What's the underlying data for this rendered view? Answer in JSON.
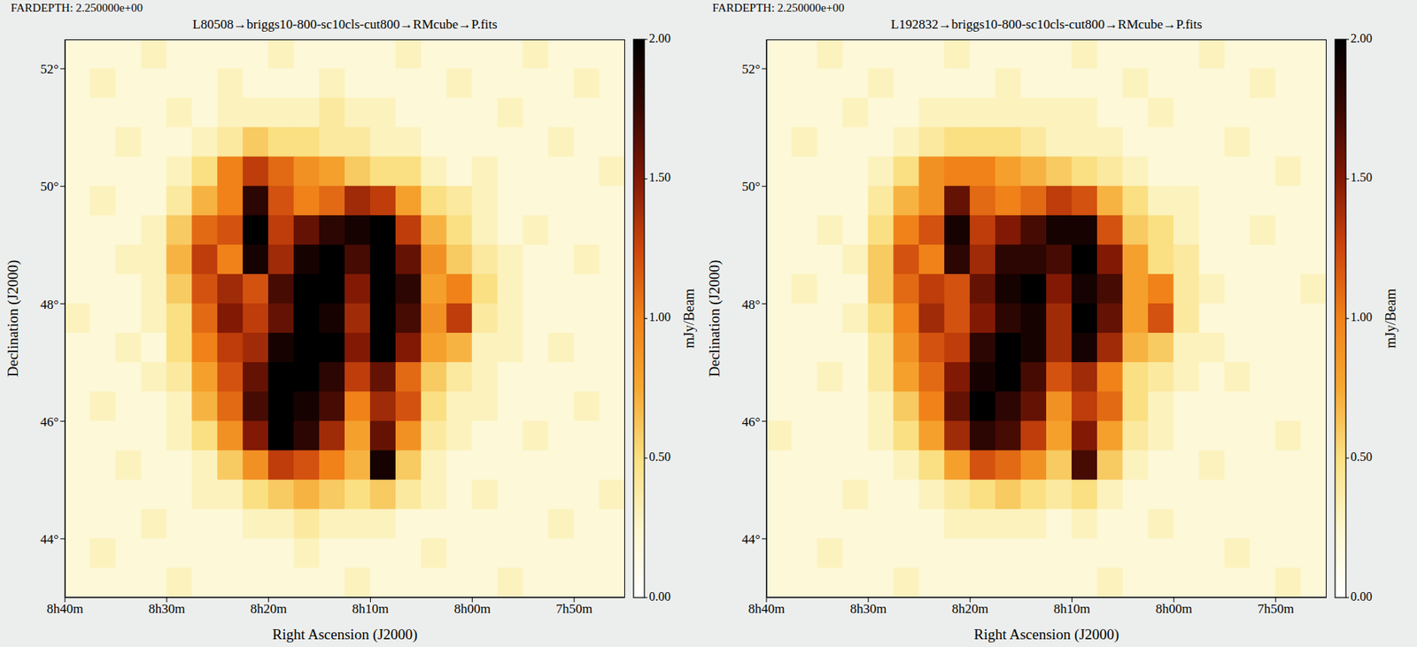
{
  "chart_data": [
    {
      "type": "heatmap",
      "subtitle": "FARDEPTH: 2.250000e+00",
      "title": "L80508→briggs10-800-sc10cls-cut800→RMcube→P.fits",
      "x_label": "Right Ascension (J2000)",
      "y_label": "Declination (J2000)",
      "xlim": [
        520,
        465
      ],
      "xticks": [
        {
          "value": 520,
          "label": "8h40m"
        },
        {
          "value": 510,
          "label": "8h30m"
        },
        {
          "value": 500,
          "label": "8h20m"
        },
        {
          "value": 490,
          "label": "8h10m"
        },
        {
          "value": 480,
          "label": "8h00m"
        },
        {
          "value": 470,
          "label": "7h50m"
        }
      ],
      "ylim": [
        43,
        52.5
      ],
      "yticks": [
        {
          "value": 44,
          "label": "44°"
        },
        {
          "value": 46,
          "label": "46°"
        },
        {
          "value": 48,
          "label": "48°"
        },
        {
          "value": 50,
          "label": "50°"
        },
        {
          "value": 52,
          "label": "52°"
        }
      ],
      "x": [
        518.75,
        516.25,
        513.75,
        511.25,
        508.75,
        506.25,
        503.75,
        501.25,
        498.75,
        496.25,
        493.75,
        491.25,
        488.75,
        486.25,
        483.75,
        481.25,
        478.75,
        476.25,
        473.75,
        471.25,
        468.75,
        466.25
      ],
      "y": [
        52.25,
        51.75,
        51.25,
        50.75,
        50.25,
        49.75,
        49.25,
        48.75,
        48.25,
        47.75,
        47.25,
        46.75,
        46.25,
        45.75,
        45.25,
        44.75,
        44.25,
        43.75,
        43.25
      ],
      "cells": [
        [
          0.2,
          0.2,
          0.2,
          0.3,
          0.2,
          0.2,
          0.2,
          0.2,
          0.3,
          0.2,
          0.2,
          0.2,
          0.2,
          0.3,
          0.2,
          0.2,
          0.2,
          0.2,
          0.3,
          0.2,
          0.2,
          0.2
        ],
        [
          0.2,
          0.3,
          0.2,
          0.2,
          0.2,
          0.2,
          0.3,
          0.2,
          0.2,
          0.2,
          0.3,
          0.2,
          0.2,
          0.2,
          0.2,
          0.3,
          0.2,
          0.2,
          0.2,
          0.2,
          0.3,
          0.2
        ],
        [
          0.2,
          0.2,
          0.2,
          0.2,
          0.3,
          0.2,
          0.3,
          0.3,
          0.3,
          0.3,
          0.4,
          0.3,
          0.3,
          0.2,
          0.2,
          0.2,
          0.2,
          0.3,
          0.2,
          0.2,
          0.2,
          0.2
        ],
        [
          0.2,
          0.2,
          0.3,
          0.2,
          0.2,
          0.3,
          0.4,
          0.6,
          0.5,
          0.5,
          0.4,
          0.4,
          0.3,
          0.3,
          0.2,
          0.2,
          0.2,
          0.2,
          0.2,
          0.3,
          0.2,
          0.2
        ],
        [
          0.2,
          0.2,
          0.2,
          0.2,
          0.3,
          0.5,
          1.0,
          1.3,
          1.1,
          0.9,
          0.8,
          0.6,
          0.5,
          0.5,
          0.3,
          0.2,
          0.3,
          0.2,
          0.2,
          0.2,
          0.2,
          0.3
        ],
        [
          0.2,
          0.3,
          0.2,
          0.2,
          0.4,
          0.7,
          1.0,
          1.8,
          1.2,
          1.0,
          1.1,
          1.4,
          1.3,
          0.8,
          0.5,
          0.4,
          0.3,
          0.2,
          0.2,
          0.2,
          0.2,
          0.2
        ],
        [
          0.2,
          0.2,
          0.2,
          0.3,
          0.6,
          1.1,
          1.2,
          2.0,
          1.3,
          1.6,
          1.8,
          1.9,
          2.0,
          1.3,
          0.7,
          0.5,
          0.3,
          0.2,
          0.3,
          0.2,
          0.2,
          0.2
        ],
        [
          0.2,
          0.2,
          0.3,
          0.3,
          0.7,
          1.3,
          1.0,
          1.9,
          1.4,
          1.9,
          2.0,
          1.7,
          2.0,
          1.6,
          0.9,
          0.6,
          0.4,
          0.3,
          0.2,
          0.2,
          0.3,
          0.2
        ],
        [
          0.2,
          0.2,
          0.2,
          0.3,
          0.6,
          1.2,
          1.4,
          1.2,
          1.7,
          2.0,
          2.0,
          1.5,
          2.0,
          1.8,
          0.8,
          1.0,
          0.5,
          0.3,
          0.2,
          0.2,
          0.2,
          0.2
        ],
        [
          0.3,
          0.2,
          0.2,
          0.3,
          0.5,
          1.1,
          1.5,
          1.3,
          1.6,
          2.0,
          1.9,
          1.4,
          2.0,
          1.7,
          0.9,
          1.3,
          0.4,
          0.3,
          0.2,
          0.2,
          0.2,
          0.2
        ],
        [
          0.2,
          0.2,
          0.3,
          0.2,
          0.5,
          1.0,
          1.3,
          1.4,
          1.9,
          2.0,
          2.0,
          1.5,
          2.0,
          1.5,
          0.8,
          0.7,
          0.3,
          0.3,
          0.2,
          0.3,
          0.2,
          0.2
        ],
        [
          0.2,
          0.2,
          0.2,
          0.3,
          0.4,
          0.8,
          1.2,
          1.6,
          2.0,
          2.0,
          1.8,
          1.3,
          1.6,
          1.1,
          0.6,
          0.4,
          0.3,
          0.2,
          0.2,
          0.2,
          0.2,
          0.2
        ],
        [
          0.2,
          0.3,
          0.2,
          0.2,
          0.3,
          0.7,
          1.1,
          1.7,
          2.0,
          1.9,
          1.7,
          1.0,
          1.4,
          1.2,
          0.5,
          0.3,
          0.3,
          0.2,
          0.2,
          0.2,
          0.3,
          0.2
        ],
        [
          0.2,
          0.2,
          0.2,
          0.2,
          0.3,
          0.5,
          0.9,
          1.5,
          2.0,
          1.8,
          1.4,
          0.8,
          1.6,
          0.9,
          0.4,
          0.3,
          0.2,
          0.2,
          0.3,
          0.2,
          0.2,
          0.2
        ],
        [
          0.2,
          0.2,
          0.3,
          0.2,
          0.2,
          0.3,
          0.6,
          0.9,
          1.3,
          1.2,
          1.0,
          0.7,
          1.9,
          0.6,
          0.3,
          0.2,
          0.2,
          0.2,
          0.2,
          0.2,
          0.2,
          0.2
        ],
        [
          0.2,
          0.2,
          0.2,
          0.2,
          0.2,
          0.3,
          0.3,
          0.5,
          0.6,
          0.7,
          0.6,
          0.5,
          0.6,
          0.4,
          0.3,
          0.2,
          0.3,
          0.2,
          0.2,
          0.2,
          0.2,
          0.3
        ],
        [
          0.2,
          0.2,
          0.2,
          0.3,
          0.2,
          0.2,
          0.2,
          0.3,
          0.3,
          0.4,
          0.3,
          0.3,
          0.3,
          0.2,
          0.2,
          0.2,
          0.2,
          0.2,
          0.2,
          0.3,
          0.2,
          0.2
        ],
        [
          0.2,
          0.3,
          0.2,
          0.2,
          0.2,
          0.2,
          0.2,
          0.2,
          0.2,
          0.3,
          0.2,
          0.2,
          0.2,
          0.2,
          0.3,
          0.2,
          0.2,
          0.2,
          0.2,
          0.2,
          0.2,
          0.2
        ],
        [
          0.2,
          0.2,
          0.2,
          0.2,
          0.3,
          0.2,
          0.2,
          0.2,
          0.2,
          0.2,
          0.2,
          0.3,
          0.2,
          0.2,
          0.2,
          0.2,
          0.2,
          0.3,
          0.2,
          0.2,
          0.2,
          0.2
        ]
      ],
      "colorbar": {
        "range": [
          0,
          2
        ],
        "ticks": [
          {
            "value": 0,
            "label": "0.00"
          },
          {
            "value": 0.5,
            "label": "0.50"
          },
          {
            "value": 1,
            "label": "1.00"
          },
          {
            "value": 1.5,
            "label": "1.50"
          },
          {
            "value": 2,
            "label": "2.00"
          }
        ],
        "label": "mJy/Beam"
      }
    },
    {
      "type": "heatmap",
      "subtitle": "FARDEPTH: 2.250000e+00",
      "title": "L192832→briggs10-800-sc10cls-cut800→RMcube→P.fits",
      "x_label": "Right Ascension (J2000)",
      "y_label": "Declination (J2000)",
      "xlim": [
        520,
        465
      ],
      "xticks": [
        {
          "value": 520,
          "label": "8h40m"
        },
        {
          "value": 510,
          "label": "8h30m"
        },
        {
          "value": 500,
          "label": "8h20m"
        },
        {
          "value": 490,
          "label": "8h10m"
        },
        {
          "value": 480,
          "label": "8h00m"
        },
        {
          "value": 470,
          "label": "7h50m"
        }
      ],
      "ylim": [
        43,
        52.5
      ],
      "yticks": [
        {
          "value": 44,
          "label": "44°"
        },
        {
          "value": 46,
          "label": "46°"
        },
        {
          "value": 48,
          "label": "48°"
        },
        {
          "value": 50,
          "label": "50°"
        },
        {
          "value": 52,
          "label": "52°"
        }
      ],
      "x": [
        518.75,
        516.25,
        513.75,
        511.25,
        508.75,
        506.25,
        503.75,
        501.25,
        498.75,
        496.25,
        493.75,
        491.25,
        488.75,
        486.25,
        483.75,
        481.25,
        478.75,
        476.25,
        473.75,
        471.25,
        468.75,
        466.25
      ],
      "y": [
        52.25,
        51.75,
        51.25,
        50.75,
        50.25,
        49.75,
        49.25,
        48.75,
        48.25,
        47.75,
        47.25,
        46.75,
        46.25,
        45.75,
        45.25,
        44.75,
        44.25,
        43.75,
        43.25
      ],
      "cells": [
        [
          0.2,
          0.2,
          0.3,
          0.2,
          0.2,
          0.2,
          0.2,
          0.3,
          0.2,
          0.2,
          0.2,
          0.2,
          0.3,
          0.2,
          0.2,
          0.2,
          0.2,
          0.3,
          0.2,
          0.2,
          0.2,
          0.2
        ],
        [
          0.2,
          0.2,
          0.2,
          0.2,
          0.3,
          0.2,
          0.2,
          0.2,
          0.2,
          0.3,
          0.2,
          0.2,
          0.2,
          0.2,
          0.3,
          0.2,
          0.2,
          0.2,
          0.2,
          0.3,
          0.2,
          0.2
        ],
        [
          0.2,
          0.2,
          0.2,
          0.3,
          0.2,
          0.2,
          0.3,
          0.3,
          0.3,
          0.3,
          0.3,
          0.3,
          0.3,
          0.2,
          0.2,
          0.3,
          0.2,
          0.2,
          0.2,
          0.2,
          0.2,
          0.2
        ],
        [
          0.2,
          0.3,
          0.2,
          0.2,
          0.2,
          0.3,
          0.4,
          0.5,
          0.5,
          0.5,
          0.4,
          0.3,
          0.3,
          0.3,
          0.2,
          0.2,
          0.2,
          0.2,
          0.3,
          0.2,
          0.2,
          0.2
        ],
        [
          0.2,
          0.2,
          0.2,
          0.2,
          0.3,
          0.5,
          0.9,
          1.0,
          1.0,
          0.8,
          0.7,
          0.6,
          0.5,
          0.4,
          0.3,
          0.2,
          0.2,
          0.2,
          0.2,
          0.2,
          0.3,
          0.2
        ],
        [
          0.2,
          0.2,
          0.2,
          0.2,
          0.4,
          0.7,
          0.9,
          1.6,
          1.1,
          1.0,
          1.1,
          1.3,
          1.2,
          0.7,
          0.5,
          0.3,
          0.3,
          0.2,
          0.2,
          0.2,
          0.2,
          0.2
        ],
        [
          0.2,
          0.2,
          0.3,
          0.2,
          0.5,
          1.0,
          1.2,
          1.9,
          1.3,
          1.5,
          1.7,
          1.9,
          1.9,
          1.2,
          0.6,
          0.5,
          0.3,
          0.2,
          0.2,
          0.3,
          0.2,
          0.2
        ],
        [
          0.2,
          0.2,
          0.2,
          0.3,
          0.6,
          1.2,
          1.0,
          1.8,
          1.4,
          1.8,
          1.8,
          1.7,
          2.0,
          1.5,
          0.8,
          0.5,
          0.4,
          0.2,
          0.2,
          0.2,
          0.2,
          0.2
        ],
        [
          0.2,
          0.3,
          0.2,
          0.2,
          0.6,
          1.1,
          1.3,
          1.2,
          1.6,
          1.9,
          2.0,
          1.5,
          1.9,
          1.7,
          0.8,
          1.0,
          0.4,
          0.3,
          0.2,
          0.2,
          0.2,
          0.3
        ],
        [
          0.2,
          0.2,
          0.2,
          0.3,
          0.5,
          1.0,
          1.4,
          1.2,
          1.5,
          1.8,
          1.9,
          1.4,
          2.0,
          1.6,
          0.8,
          1.2,
          0.4,
          0.2,
          0.2,
          0.2,
          0.2,
          0.2
        ],
        [
          0.2,
          0.2,
          0.2,
          0.2,
          0.4,
          0.9,
          1.2,
          1.3,
          1.8,
          2.0,
          1.9,
          1.4,
          1.9,
          1.4,
          0.7,
          0.6,
          0.3,
          0.3,
          0.2,
          0.2,
          0.2,
          0.2
        ],
        [
          0.2,
          0.2,
          0.3,
          0.2,
          0.4,
          0.8,
          1.1,
          1.5,
          1.9,
          2.0,
          1.7,
          1.2,
          1.4,
          1.0,
          0.5,
          0.4,
          0.3,
          0.2,
          0.3,
          0.2,
          0.2,
          0.2
        ],
        [
          0.2,
          0.2,
          0.2,
          0.2,
          0.3,
          0.6,
          1.0,
          1.6,
          2.0,
          1.8,
          1.6,
          0.9,
          1.3,
          1.1,
          0.5,
          0.3,
          0.2,
          0.2,
          0.2,
          0.2,
          0.2,
          0.2
        ],
        [
          0.3,
          0.2,
          0.2,
          0.2,
          0.3,
          0.5,
          0.8,
          1.4,
          1.8,
          1.7,
          1.3,
          0.8,
          1.5,
          0.8,
          0.4,
          0.3,
          0.2,
          0.2,
          0.2,
          0.2,
          0.3,
          0.2
        ],
        [
          0.2,
          0.2,
          0.2,
          0.2,
          0.2,
          0.3,
          0.5,
          0.8,
          1.2,
          1.1,
          0.9,
          0.6,
          1.7,
          0.6,
          0.3,
          0.2,
          0.2,
          0.3,
          0.2,
          0.2,
          0.2,
          0.2
        ],
        [
          0.2,
          0.2,
          0.2,
          0.3,
          0.2,
          0.2,
          0.3,
          0.4,
          0.5,
          0.6,
          0.5,
          0.4,
          0.5,
          0.3,
          0.2,
          0.2,
          0.2,
          0.2,
          0.2,
          0.2,
          0.2,
          0.2
        ],
        [
          0.2,
          0.2,
          0.2,
          0.2,
          0.2,
          0.2,
          0.2,
          0.3,
          0.3,
          0.3,
          0.3,
          0.2,
          0.3,
          0.2,
          0.2,
          0.3,
          0.2,
          0.2,
          0.2,
          0.2,
          0.2,
          0.2
        ],
        [
          0.2,
          0.2,
          0.3,
          0.2,
          0.2,
          0.2,
          0.2,
          0.2,
          0.2,
          0.2,
          0.2,
          0.2,
          0.2,
          0.2,
          0.2,
          0.2,
          0.2,
          0.2,
          0.3,
          0.2,
          0.2,
          0.2
        ],
        [
          0.2,
          0.2,
          0.2,
          0.2,
          0.2,
          0.3,
          0.2,
          0.2,
          0.2,
          0.2,
          0.2,
          0.2,
          0.2,
          0.3,
          0.2,
          0.2,
          0.2,
          0.2,
          0.2,
          0.2,
          0.3,
          0.2
        ]
      ],
      "colorbar": {
        "range": [
          0,
          2
        ],
        "ticks": [
          {
            "value": 0,
            "label": "0.00"
          },
          {
            "value": 0.5,
            "label": "0.50"
          },
          {
            "value": 1,
            "label": "1.00"
          },
          {
            "value": 1.5,
            "label": "1.50"
          },
          {
            "value": 2,
            "label": "2.00"
          }
        ],
        "label": "mJy/Beam"
      }
    }
  ]
}
